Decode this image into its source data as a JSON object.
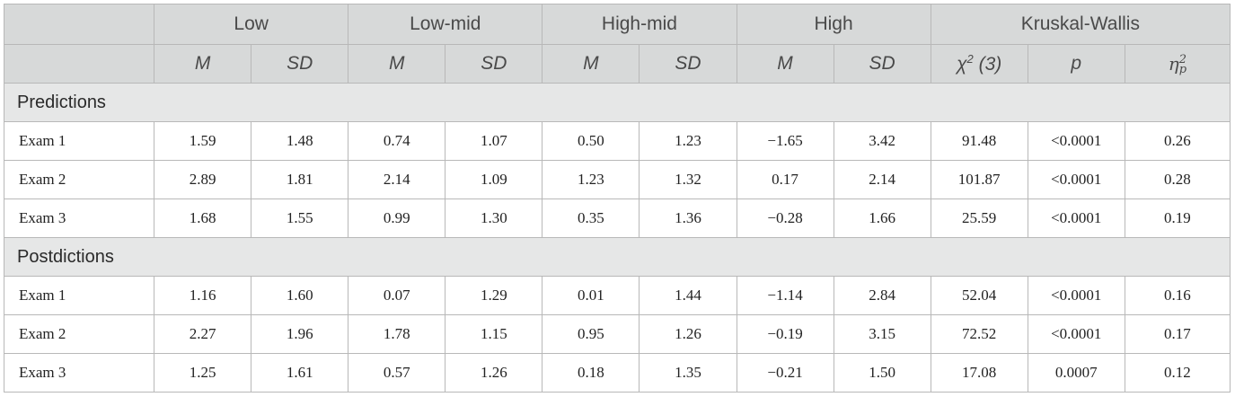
{
  "header": {
    "groups": [
      "Low",
      "Low-mid",
      "High-mid",
      "High",
      "Kruskal-Wallis"
    ],
    "sub": {
      "m": "M",
      "sd": "SD",
      "chi": "χ",
      "chi_sup": "2",
      "chi_df": "(3)",
      "p": "p",
      "eta": "η",
      "eta_sup": "2",
      "eta_sub": "p"
    }
  },
  "sections": [
    {
      "title": "Predictions",
      "rows": [
        {
          "label": "Exam 1",
          "values": [
            "1.59",
            "1.48",
            "0.74",
            "1.07",
            "0.50",
            "1.23",
            "−1.65",
            "3.42",
            "91.48",
            "<0.0001",
            "0.26"
          ]
        },
        {
          "label": "Exam 2",
          "values": [
            "2.89",
            "1.81",
            "2.14",
            "1.09",
            "1.23",
            "1.32",
            "0.17",
            "2.14",
            "101.87",
            "<0.0001",
            "0.28"
          ]
        },
        {
          "label": "Exam 3",
          "values": [
            "1.68",
            "1.55",
            "0.99",
            "1.30",
            "0.35",
            "1.36",
            "−0.28",
            "1.66",
            "25.59",
            "<0.0001",
            "0.19"
          ]
        }
      ]
    },
    {
      "title": "Postdictions",
      "rows": [
        {
          "label": "Exam 1",
          "values": [
            "1.16",
            "1.60",
            "0.07",
            "1.29",
            "0.01",
            "1.44",
            "−1.14",
            "2.84",
            "52.04",
            "<0.0001",
            "0.16"
          ]
        },
        {
          "label": "Exam 2",
          "values": [
            "2.27",
            "1.96",
            "1.78",
            "1.15",
            "0.95",
            "1.26",
            "−0.19",
            "3.15",
            "72.52",
            "<0.0001",
            "0.17"
          ]
        },
        {
          "label": "Exam 3",
          "values": [
            "1.25",
            "1.61",
            "0.57",
            "1.26",
            "0.18",
            "1.35",
            "−0.21",
            "1.50",
            "17.08",
            "0.0007",
            "0.12"
          ]
        }
      ]
    }
  ]
}
